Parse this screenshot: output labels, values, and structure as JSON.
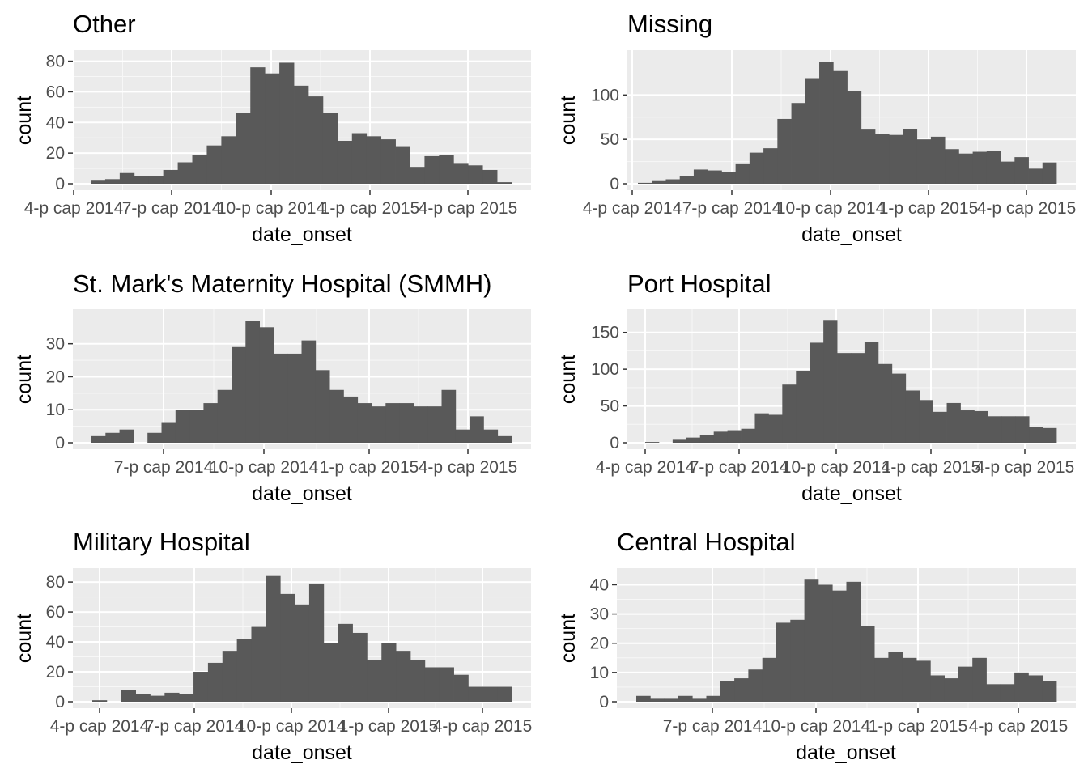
{
  "chart_data": [
    {
      "type": "bar",
      "title": "Other",
      "xlabel": "date_onset",
      "ylabel": "count",
      "x_ticks": [
        "4-p cap 2014",
        "7-p cap 2014",
        "10-p cap 2014",
        "1-p cap 2015",
        "4-p cap 2015"
      ],
      "y_ticks": [
        0,
        20,
        40,
        60,
        80
      ],
      "ylim": [
        0,
        84
      ],
      "values": [
        2,
        3,
        7,
        5,
        5,
        9,
        14,
        19,
        25,
        31,
        46,
        76,
        72,
        79,
        64,
        57,
        46,
        28,
        33,
        31,
        29,
        24,
        11,
        18,
        19,
        13,
        12,
        9,
        1
      ]
    },
    {
      "type": "bar",
      "title": "Missing",
      "xlabel": "date_onset",
      "ylabel": "count",
      "x_ticks": [
        "4-p cap 2014",
        "7-p cap 2014",
        "10-p cap 2014",
        "1-p cap 2015",
        "4-p cap 2015"
      ],
      "y_ticks": [
        0,
        50,
        100
      ],
      "ylim": [
        0,
        145
      ],
      "values": [
        1,
        3,
        5,
        9,
        16,
        15,
        13,
        22,
        35,
        40,
        73,
        91,
        119,
        137,
        127,
        104,
        61,
        56,
        55,
        62,
        50,
        53,
        39,
        34,
        36,
        37,
        25,
        30,
        17,
        24
      ]
    },
    {
      "type": "bar",
      "title": "St. Mark's Maternity Hospital (SMMH)",
      "xlabel": "date_onset",
      "ylabel": "count",
      "x_ticks": [
        "7-p cap 2014",
        "10-p cap 2014",
        "1-p cap 2015",
        "4-p cap 2015"
      ],
      "y_ticks": [
        0,
        10,
        20,
        30
      ],
      "ylim": [
        0,
        39
      ],
      "values": [
        2,
        3,
        4,
        0,
        3,
        6,
        10,
        10,
        12,
        16,
        29,
        37,
        35,
        27,
        27,
        31,
        22,
        16,
        14,
        12,
        11,
        12,
        12,
        11,
        11,
        16,
        4,
        8,
        4,
        2
      ]
    },
    {
      "type": "bar",
      "title": "Port Hospital",
      "xlabel": "date_onset",
      "ylabel": "count",
      "x_ticks": [
        "4-p cap 2014",
        "7-p cap 2014",
        "10-p cap 2014",
        "1-p cap 2015",
        "4-p cap 2015"
      ],
      "y_ticks": [
        0,
        50,
        100,
        150
      ],
      "ylim": [
        0,
        175
      ],
      "values": [
        1,
        0,
        4,
        7,
        11,
        15,
        17,
        19,
        40,
        38,
        79,
        98,
        136,
        167,
        122,
        122,
        137,
        107,
        94,
        71,
        58,
        42,
        54,
        44,
        43,
        36,
        36,
        36,
        22,
        20
      ]
    },
    {
      "type": "bar",
      "title": "Military Hospital",
      "xlabel": "date_onset",
      "ylabel": "count",
      "x_ticks": [
        "4-p cap 2014",
        "7-p cap 2014",
        "10-p cap 2014",
        "1-p cap 2015",
        "4-p cap 2015"
      ],
      "y_ticks": [
        0,
        20,
        40,
        60,
        80
      ],
      "ylim": [
        0,
        86
      ],
      "values": [
        1,
        0,
        8,
        5,
        4,
        6,
        5,
        20,
        26,
        34,
        42,
        50,
        84,
        72,
        65,
        79,
        39,
        52,
        46,
        28,
        39,
        34,
        28,
        23,
        23,
        18,
        10,
        10,
        10
      ]
    },
    {
      "type": "bar",
      "title": "Central Hospital",
      "xlabel": "date_onset",
      "ylabel": "count",
      "x_ticks": [
        "7-p cap 2014",
        "10-p cap 2014",
        "1-p cap 2015",
        "4-p cap 2015"
      ],
      "y_ticks": [
        0,
        10,
        20,
        30,
        40
      ],
      "ylim": [
        0,
        44
      ],
      "values": [
        2,
        1,
        1,
        2,
        1,
        2,
        7,
        8,
        11,
        15,
        27,
        28,
        42,
        40,
        38,
        41,
        26,
        15,
        17,
        15,
        14,
        9,
        8,
        12,
        15,
        6,
        6,
        10,
        9,
        7
      ]
    }
  ]
}
